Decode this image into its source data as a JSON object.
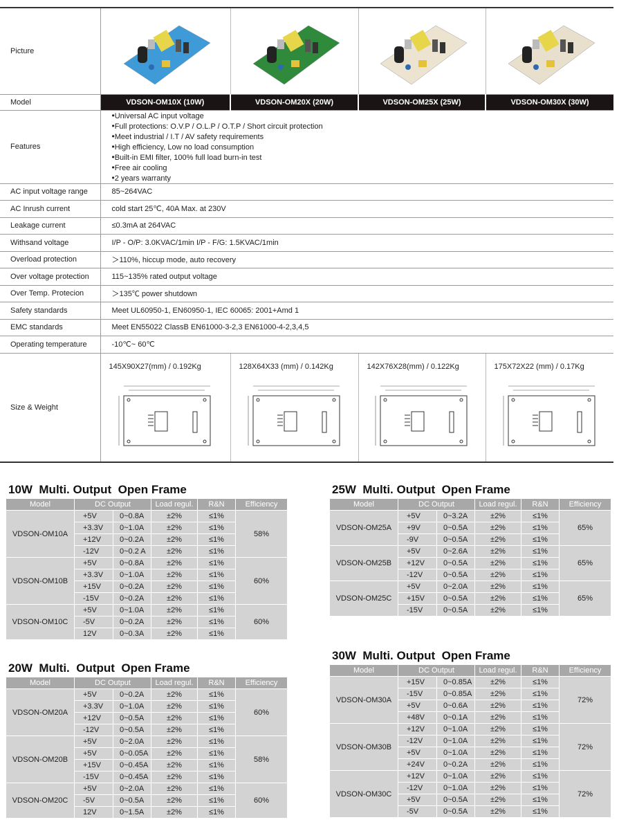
{
  "spec": {
    "labels": {
      "picture": "Picture",
      "model": "Model",
      "features": "Features",
      "size_weight": "Size & Weight"
    },
    "models": [
      "VDSON-OM10X (10W)",
      "VDSON-OM20X (20W)",
      "VDSON-OM25X (25W)",
      "VDSON-OM30X (30W)"
    ],
    "picture_colors": [
      "#3f9ad8",
      "#2f8a3c",
      "#ece4d0",
      "#e8dfcc"
    ],
    "features": [
      "Universal AC input voltage",
      "Full protections: O.V.P / O.L.P / O.T.P / Short circuit protection",
      "Meet industrial / I.T / AV safety requirements",
      "High efficiency, Low no load consumption",
      "Built-in EMI filter, 100% full load burn-in test",
      "Free air cooling",
      "2 years warranty"
    ],
    "rows": [
      {
        "label": "AC input voltage range",
        "value": "85~264VAC"
      },
      {
        "label": "AC Inrush current",
        "value": "cold start 25℃,  40A  Max. at  230V"
      },
      {
        "label": "Leakage current",
        "value": "≤0.3mA at 264VAC"
      },
      {
        "label": "Withsand voltage",
        "value": "I/P - O/P: 3.0KVAC/1min   I/P - F/G: 1.5KVAC/1min"
      },
      {
        "label": "Overload protection",
        "value": "＞110%, hiccup mode, auto recovery"
      },
      {
        "label": "Over voltage protection",
        "value": "115~135% rated output voltage"
      },
      {
        "label": "Over Temp. Protecion",
        "value": "＞135℃ power shutdown"
      },
      {
        "label": "Safety standards",
        "value": "Meet UL60950-1, EN60950-1, IEC 60065: 2001+Amd 1"
      },
      {
        "label": "EMC standards",
        "value": "Meet EN55022 ClassB   EN61000-3-2,3   EN61000-4-2,3,4,5"
      },
      {
        "label": "Operating temperature",
        "value": "-10℃~ 60℃"
      }
    ],
    "sizes": [
      "145X90X27(mm)  /  0.192Kg",
      "128X64X33 (mm)  /  0.142Kg",
      "142X76X28(mm)  /  0.122Kg",
      "175X72X22 (mm)  /  0.17Kg"
    ]
  },
  "tables": [
    {
      "title": "10W  Multi. Output  Open Frame",
      "headers": {
        "model": "Model",
        "dc": "DC Output",
        "load": "Load regul.",
        "rn": "R&N",
        "eff": "Efficiency"
      },
      "groups": [
        {
          "model": "VDSON-OM10A",
          "efficiency": "58%",
          "outputs": [
            [
              "+5V",
              "0~0.8A",
              "±2%",
              "≤1%"
            ],
            [
              "+3.3V",
              "0~1.0A",
              "±2%",
              "≤1%"
            ],
            [
              "+12V",
              "0~0.2A",
              "±2%",
              "≤1%"
            ],
            [
              "-12V",
              "0~0.2 A",
              "±2%",
              "≤1%"
            ]
          ]
        },
        {
          "model": "VDSON-OM10B",
          "efficiency": "60%",
          "outputs": [
            [
              "+5V",
              "0~0.8A",
              "±2%",
              "≤1%"
            ],
            [
              "+3.3V",
              "0~1.0A",
              "±2%",
              "≤1%"
            ],
            [
              "+15V",
              "0~0.2A",
              "±2%",
              "≤1%"
            ],
            [
              "-15V",
              "0~0.2A",
              "±2%",
              "≤1%"
            ]
          ]
        },
        {
          "model": "VDSON-OM10C",
          "efficiency": "60%",
          "outputs": [
            [
              "+5V",
              "0~1.0A",
              "±2%",
              "≤1%"
            ],
            [
              "-5V",
              "0~0.2A",
              "±2%",
              "≤1%"
            ],
            [
              "12V",
              "0~0.3A",
              "±2%",
              "≤1%"
            ]
          ]
        }
      ]
    },
    {
      "title": "20W  Multi.  Output  Open Frame",
      "headers": {
        "model": "Model",
        "dc": "DC Output",
        "load": "Load regul.",
        "rn": "R&N",
        "eff": "Efficiency"
      },
      "groups": [
        {
          "model": "VDSON-OM20A",
          "efficiency": "60%",
          "outputs": [
            [
              "+5V",
              "0~0.2A",
              "±2%",
              "≤1%"
            ],
            [
              "+3.3V",
              "0~1.0A",
              "±2%",
              "≤1%"
            ],
            [
              "+12V",
              "0~0.5A",
              "±2%",
              "≤1%"
            ],
            [
              "-12V",
              "0~0.5A",
              "±2%",
              "≤1%"
            ]
          ]
        },
        {
          "model": "VDSON-OM20B",
          "efficiency": "58%",
          "outputs": [
            [
              "+5V",
              "0~2.0A",
              "±2%",
              "≤1%"
            ],
            [
              "+5V",
              "0~0.05A",
              "±2%",
              "≤1%"
            ],
            [
              "+15V",
              "0~0.45A",
              "±2%",
              "≤1%"
            ],
            [
              "-15V",
              "0~0.45A",
              "±2%",
              "≤1%"
            ]
          ]
        },
        {
          "model": "VDSON-OM20C",
          "efficiency": "60%",
          "outputs": [
            [
              "+5V",
              "0~2.0A",
              "±2%",
              "≤1%"
            ],
            [
              "-5V",
              "0~0.5A",
              "±2%",
              "≤1%"
            ],
            [
              "12V",
              "0~1.5A",
              "±2%",
              "≤1%"
            ]
          ]
        }
      ]
    },
    {
      "title": "25W  Multi. Output  Open Frame",
      "headers": {
        "model": "Model",
        "dc": "DC Output",
        "load": "Load regul.",
        "rn": "R&N",
        "eff": "Efficiency"
      },
      "groups": [
        {
          "model": "VDSON-OM25A",
          "efficiency": "65%",
          "outputs": [
            [
              "+5V",
              "0~3.2A",
              "±2%",
              "≤1%"
            ],
            [
              "+9V",
              "0~0.5A",
              "±2%",
              "≤1%"
            ],
            [
              "-9V",
              "0~0.5A",
              "±2%",
              "≤1%"
            ]
          ]
        },
        {
          "model": "VDSON-OM25B",
          "efficiency": "65%",
          "outputs": [
            [
              "+5V",
              "0~2.6A",
              "±2%",
              "≤1%"
            ],
            [
              "+12V",
              "0~0.5A",
              "±2%",
              "≤1%"
            ],
            [
              "-12V",
              "0~0.5A",
              "±2%",
              "≤1%"
            ]
          ]
        },
        {
          "model": "VDSON-OM25C",
          "efficiency": "65%",
          "outputs": [
            [
              "+5V",
              "0~2.0A",
              "±2%",
              "≤1%"
            ],
            [
              "+15V",
              "0~0.5A",
              "±2%",
              "≤1%"
            ],
            [
              "-15V",
              "0~0.5A",
              "±2%",
              "≤1%"
            ]
          ]
        }
      ]
    },
    {
      "title": "30W  Multi. Output  Open Frame",
      "headers": {
        "model": "Model",
        "dc": "DC Output",
        "load": "Load regul.",
        "rn": "R&N",
        "eff": "Efficiency"
      },
      "groups": [
        {
          "model": "VDSON-OM30A",
          "efficiency": "72%",
          "outputs": [
            [
              "+15V",
              "0~0.85A",
              "±2%",
              "≤1%"
            ],
            [
              "-15V",
              "0~0.85A",
              "±2%",
              "≤1%"
            ],
            [
              "+5V",
              "0~0.6A",
              "±2%",
              "≤1%"
            ],
            [
              "+48V",
              "0~0.1A",
              "±2%",
              "≤1%"
            ]
          ]
        },
        {
          "model": "VDSON-OM30B",
          "efficiency": "72%",
          "outputs": [
            [
              "+12V",
              "0~1.0A",
              "±2%",
              "≤1%"
            ],
            [
              "-12V",
              "0~1.0A",
              "±2%",
              "≤1%"
            ],
            [
              "+5V",
              "0~1.0A",
              "±2%",
              "≤1%"
            ],
            [
              "+24V",
              "0~0.2A",
              "±2%",
              "≤1%"
            ]
          ]
        },
        {
          "model": "VDSON-OM30C",
          "efficiency": "72%",
          "outputs": [
            [
              "+12V",
              "0~1.0A",
              "±2%",
              "≤1%"
            ],
            [
              "-12V",
              "0~1.0A",
              "±2%",
              "≤1%"
            ],
            [
              "+5V",
              "0~0.5A",
              "±2%",
              "≤1%"
            ],
            [
              "-5V",
              "0~0.5A",
              "±2%",
              "≤1%"
            ]
          ]
        }
      ]
    }
  ]
}
